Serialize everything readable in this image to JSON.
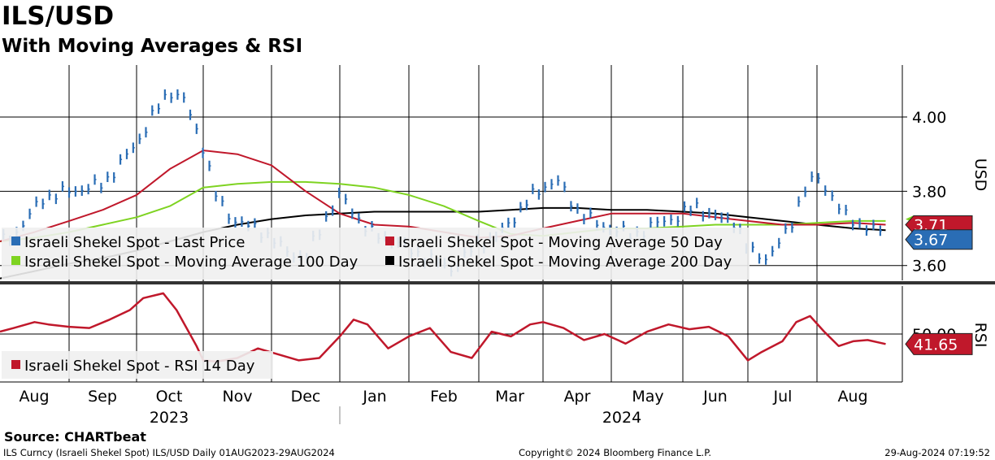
{
  "title": "ILS/USD",
  "subtitle": "With Moving Averages & RSI",
  "source": "Source:  CHARTbeat",
  "footer_left": "ILS Curncy (Israeli Shekel Spot) ILS/USD  Daily 01AUG2023-29AUG2024",
  "footer_center": "Copyright© 2024 Bloomberg Finance L.P.",
  "footer_right": "29-Aug-2024 07:19:52",
  "colors": {
    "price": "#2a6db5",
    "ma50": "#c0182b",
    "ma100": "#7ed321",
    "ma200": "#000000",
    "rsi": "#c0182b",
    "grid": "#000000"
  },
  "chart_data": [
    {
      "type": "line",
      "title": "ILS/USD",
      "ylabel": "USD",
      "ylim": [
        3.56,
        4.14
      ],
      "yticks": [
        3.6,
        3.8,
        4.0
      ],
      "ytick_labels": [
        "3.60",
        "3.80",
        "4.00"
      ],
      "x_months": [
        "Aug",
        "Sep",
        "Oct",
        "Nov",
        "Dec",
        "Jan",
        "Feb",
        "Mar",
        "Apr",
        "May",
        "Jun",
        "Jul",
        "Aug"
      ],
      "x_years": [
        "2023",
        "2024"
      ],
      "legend": [
        "Israeli Shekel Spot - Last Price",
        "Israeli Shekel Spot - Moving Average 50 Day",
        "Israeli Shekel Spot - Moving Average 100 Day",
        "Israeli Shekel Spot - Moving Average 200 Day"
      ],
      "last_labels": {
        "ma": "3.71",
        "price": "3.67"
      },
      "series": [
        {
          "name": "Last Price",
          "x": [
            0,
            0.3,
            0.6,
            1,
            1.3,
            1.5,
            1.7,
            2,
            2.3,
            2.5,
            2.7,
            3,
            3.2,
            3.4,
            3.6,
            3.9,
            4.2,
            4.5,
            4.8,
            5,
            5.3,
            5.5,
            5.8,
            6,
            6.3,
            6.6,
            7,
            7.3,
            7.6,
            7.9,
            8.2,
            8.5,
            8.8,
            9,
            9.3,
            9.6,
            9.9,
            10.2,
            10.5,
            10.8,
            11,
            11.3,
            11.6,
            11.8,
            12,
            12.2,
            12.4,
            12.6,
            12.8,
            12.95
          ],
          "values": [
            3.66,
            3.7,
            3.78,
            3.8,
            3.81,
            3.82,
            3.86,
            3.93,
            4.02,
            4.07,
            4.05,
            3.92,
            3.78,
            3.73,
            3.71,
            3.69,
            3.64,
            3.62,
            3.73,
            3.79,
            3.72,
            3.68,
            3.67,
            3.64,
            3.62,
            3.59,
            3.66,
            3.68,
            3.74,
            3.8,
            3.83,
            3.75,
            3.71,
            3.7,
            3.68,
            3.71,
            3.73,
            3.76,
            3.73,
            3.72,
            3.64,
            3.62,
            3.7,
            3.8,
            3.84,
            3.79,
            3.73,
            3.71,
            3.7,
            3.67
          ]
        },
        {
          "name": "Moving Average 50 Day",
          "x": [
            0,
            0.5,
            1,
            1.5,
            2,
            2.5,
            3,
            3.5,
            4,
            4.5,
            5,
            5.5,
            6,
            6.5,
            7,
            7.5,
            8,
            8.5,
            9,
            9.5,
            10,
            10.5,
            11,
            11.5,
            12,
            12.5,
            12.95
          ],
          "values": [
            3.665,
            3.69,
            3.72,
            3.75,
            3.79,
            3.86,
            3.91,
            3.9,
            3.87,
            3.8,
            3.74,
            3.71,
            3.705,
            3.69,
            3.675,
            3.68,
            3.7,
            3.72,
            3.74,
            3.74,
            3.74,
            3.73,
            3.72,
            3.71,
            3.71,
            3.715,
            3.71
          ]
        },
        {
          "name": "Moving Average 100 Day",
          "x": [
            0,
            0.5,
            1,
            1.5,
            2,
            2.5,
            3,
            3.5,
            4,
            4.5,
            5,
            5.5,
            6,
            6.5,
            7,
            7.5,
            8,
            8.5,
            9,
            9.5,
            10,
            10.5,
            11,
            11.5,
            12,
            12.5,
            12.95
          ],
          "values": [
            3.665,
            3.675,
            3.69,
            3.71,
            3.73,
            3.76,
            3.81,
            3.82,
            3.825,
            3.825,
            3.82,
            3.81,
            3.79,
            3.76,
            3.72,
            3.685,
            3.68,
            3.69,
            3.7,
            3.7,
            3.705,
            3.71,
            3.71,
            3.71,
            3.715,
            3.72,
            3.72
          ]
        },
        {
          "name": "Moving Average 200 Day",
          "x": [
            0,
            0.5,
            1,
            1.5,
            2,
            2.5,
            3,
            3.5,
            4,
            4.5,
            5,
            5.5,
            6,
            6.5,
            7,
            7.5,
            8,
            8.5,
            9,
            9.5,
            10,
            10.5,
            11,
            11.5,
            12,
            12.5,
            12.95
          ],
          "values": [
            3.565,
            3.585,
            3.605,
            3.62,
            3.64,
            3.665,
            3.69,
            3.71,
            3.725,
            3.735,
            3.74,
            3.745,
            3.745,
            3.745,
            3.745,
            3.75,
            3.755,
            3.755,
            3.75,
            3.75,
            3.745,
            3.74,
            3.73,
            3.72,
            3.71,
            3.7,
            3.695
          ]
        }
      ]
    },
    {
      "type": "line",
      "title": "RSI",
      "ylabel": "RSI",
      "ylim": [
        10,
        90
      ],
      "yticks": [
        50
      ],
      "ytick_labels": [
        "50.00"
      ],
      "legend": [
        "Israeli Shekel Spot - RSI 14 Day"
      ],
      "last_label": "41.65",
      "series": [
        {
          "name": "RSI 14 Day",
          "x": [
            0,
            0.2,
            0.5,
            0.7,
            1,
            1.3,
            1.6,
            1.9,
            2.1,
            2.4,
            2.6,
            2.8,
            2.9,
            3,
            3.2,
            3.5,
            3.8,
            4.1,
            4.4,
            4.7,
            5,
            5.2,
            5.4,
            5.7,
            6,
            6.3,
            6.6,
            6.9,
            7.2,
            7.5,
            7.8,
            8,
            8.3,
            8.6,
            8.9,
            9.2,
            9.5,
            9.8,
            10.1,
            10.4,
            10.7,
            11,
            11.2,
            11.5,
            11.7,
            11.9,
            12.1,
            12.3,
            12.5,
            12.7,
            12.95
          ],
          "values": [
            52,
            55,
            60,
            58,
            56,
            55,
            62,
            70,
            80,
            84,
            70,
            50,
            40,
            28,
            27,
            30,
            38,
            33,
            28,
            30,
            48,
            62,
            58,
            38,
            48,
            55,
            35,
            30,
            52,
            48,
            58,
            60,
            55,
            45,
            50,
            42,
            52,
            58,
            54,
            56,
            48,
            28,
            35,
            44,
            60,
            65,
            52,
            40,
            44,
            45,
            41.65
          ]
        }
      ]
    }
  ]
}
